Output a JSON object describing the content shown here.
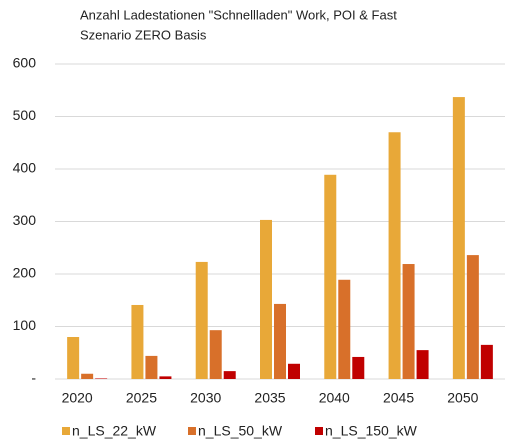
{
  "chart_data": {
    "type": "bar",
    "title": "Anzahl Ladestationen \"Schnellladen\" Work, POI & Fast",
    "subtitle": "Szenario ZERO Basis",
    "categories": [
      "2020",
      "2025",
      "2030",
      "2035",
      "2040",
      "2045",
      "2050"
    ],
    "series": [
      {
        "name": "n_LS_22_kW",
        "color": "#e8a838",
        "values": [
          80,
          141,
          223,
          303,
          389,
          470,
          537
        ]
      },
      {
        "name": "n_LS_50_kW",
        "color": "#d8702a",
        "values": [
          10,
          44,
          93,
          143,
          189,
          219,
          236
        ]
      },
      {
        "name": "n_LS_150_kW",
        "color": "#c00000",
        "values": [
          1,
          5,
          15,
          29,
          42,
          55,
          65
        ]
      }
    ],
    "ylim": [
      0,
      600
    ],
    "yticks": [
      {
        "value": 0,
        "label": "-"
      },
      100,
      200,
      300,
      400,
      500,
      600
    ],
    "grid": true
  }
}
